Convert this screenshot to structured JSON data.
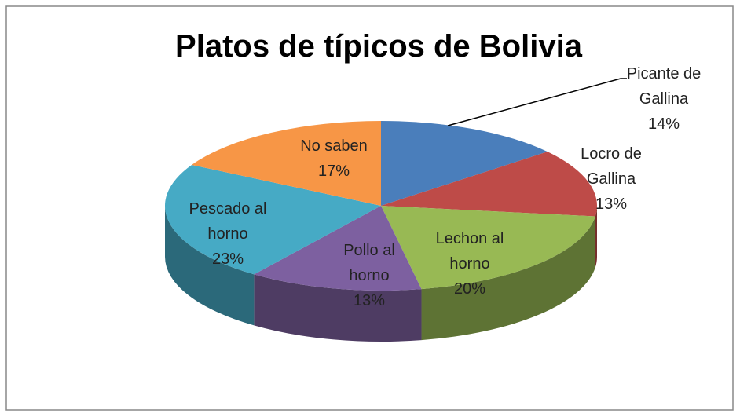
{
  "chart_data": {
    "type": "pie3d",
    "title": "Platos de típicos de Bolivia",
    "categories": [
      "Picante de Gallina",
      "Locro de Gallina",
      "Lechon al horno",
      "Pollo al horno",
      "Pescado al horno",
      "No saben"
    ],
    "values": [
      14,
      13,
      20,
      13,
      23,
      17
    ],
    "value_labels": [
      "14%",
      "13%",
      "20%",
      "13%",
      "23%",
      "17%"
    ],
    "colors": [
      "#4a7ebb",
      "#be4b48",
      "#98b954",
      "#7d60a0",
      "#46aac5",
      "#f79646"
    ]
  }
}
